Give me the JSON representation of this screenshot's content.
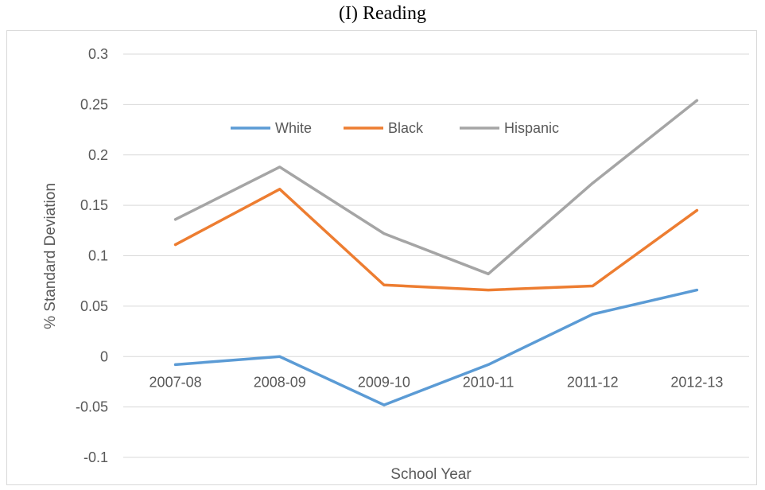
{
  "chart_data": {
    "type": "line",
    "title": "(I) Reading",
    "xlabel": "School Year",
    "ylabel": "% Standard Deviation",
    "categories": [
      "2007-08",
      "2008-09",
      "2009-10",
      "2010-11",
      "2011-12",
      "2012-13"
    ],
    "ylim": [
      -0.1,
      0.3
    ],
    "yticks": [
      "0.3",
      "0.25",
      "0.2",
      "0.15",
      "0.1",
      "0.05",
      "0",
      "-0.05",
      "-0.1"
    ],
    "yticks_values": [
      0.3,
      0.25,
      0.2,
      0.15,
      0.1,
      0.05,
      0,
      -0.05,
      -0.1
    ],
    "grid": true,
    "legend_position": "top",
    "series": [
      {
        "name": "White",
        "color": "#5b9bd5",
        "values": [
          -0.008,
          0.0,
          -0.048,
          -0.008,
          0.042,
          0.066
        ]
      },
      {
        "name": "Black",
        "color": "#ed7d31",
        "values": [
          0.111,
          0.166,
          0.071,
          0.066,
          0.07,
          0.145
        ]
      },
      {
        "name": "Hispanic",
        "color": "#a5a5a5",
        "values": [
          0.136,
          0.188,
          0.122,
          0.082,
          0.172,
          0.254
        ]
      }
    ]
  }
}
